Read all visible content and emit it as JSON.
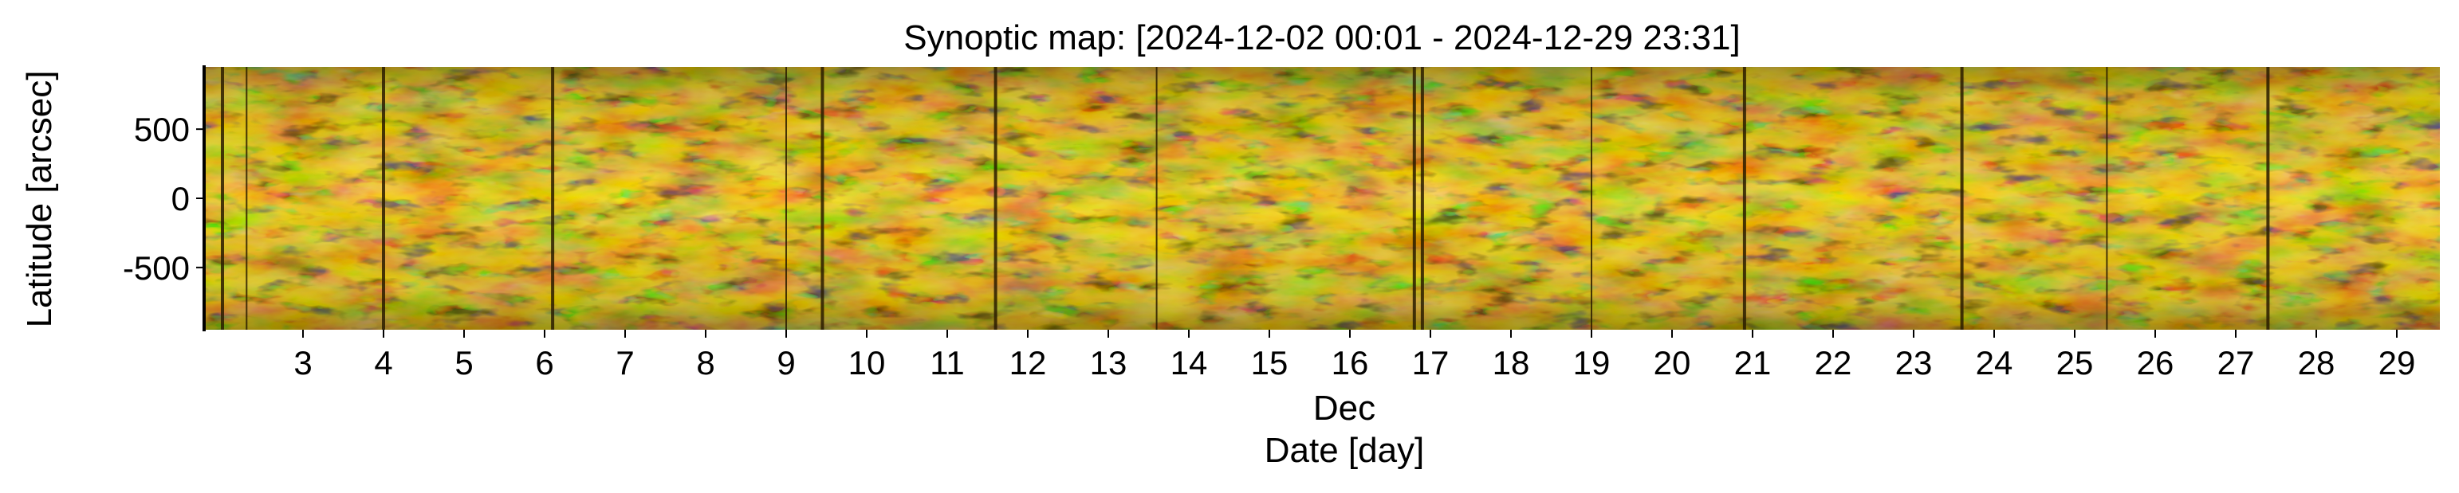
{
  "chart_data": {
    "type": "heatmap",
    "title": "Synoptic map: [2024-12-02 00:01 - 2024-12-29 23:31]",
    "xlabel": "Date [day]",
    "x_month_label": "Dec",
    "ylabel": "Latitude [arcsec]",
    "xlim": [
      "2024-12-02 00:01",
      "2024-12-29 23:31"
    ],
    "ylim": [
      -950,
      950
    ],
    "x_ticks": [
      {
        "day": 3,
        "label": "3"
      },
      {
        "day": 4,
        "label": "4"
      },
      {
        "day": 5,
        "label": "5"
      },
      {
        "day": 6,
        "label": "6"
      },
      {
        "day": 7,
        "label": "7"
      },
      {
        "day": 8,
        "label": "8"
      },
      {
        "day": 9,
        "label": "9"
      },
      {
        "day": 10,
        "label": "10"
      },
      {
        "day": 11,
        "label": "11"
      },
      {
        "day": 12,
        "label": "12"
      },
      {
        "day": 13,
        "label": "13"
      },
      {
        "day": 14,
        "label": "14"
      },
      {
        "day": 15,
        "label": "15"
      },
      {
        "day": 16,
        "label": "16"
      },
      {
        "day": 17,
        "label": "17"
      },
      {
        "day": 18,
        "label": "18"
      },
      {
        "day": 19,
        "label": "19"
      },
      {
        "day": 20,
        "label": "20"
      },
      {
        "day": 21,
        "label": "21"
      },
      {
        "day": 22,
        "label": "22"
      },
      {
        "day": 23,
        "label": "23"
      },
      {
        "day": 24,
        "label": "24"
      },
      {
        "day": 25,
        "label": "25"
      },
      {
        "day": 26,
        "label": "26"
      },
      {
        "day": 27,
        "label": "27"
      },
      {
        "day": 28,
        "label": "28"
      },
      {
        "day": 29,
        "label": "29"
      }
    ],
    "y_ticks": [
      {
        "value": 500,
        "label": "500"
      },
      {
        "value": 0,
        "label": "0"
      },
      {
        "value": -500,
        "label": "-500"
      }
    ],
    "data_gaps_day": [
      2.0,
      2.3,
      4.0,
      6.1,
      9.0,
      9.45,
      11.6,
      13.6,
      16.8,
      16.9,
      19.0,
      20.9,
      23.6,
      25.4,
      27.4
    ],
    "colormap": [
      "#3a2a00",
      "#6b4e00",
      "#a67c00",
      "#d9a000",
      "#f2bd0d",
      "#ffd84a",
      "#fff2a8"
    ],
    "grid": false
  }
}
